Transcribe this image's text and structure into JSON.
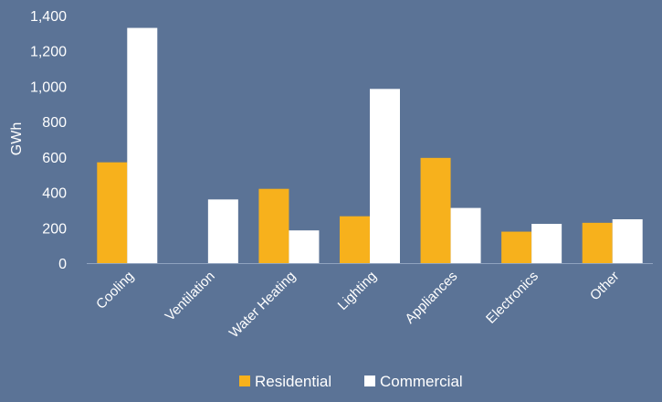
{
  "colors": {
    "background": "#5b7396",
    "residential": "#f7b11c",
    "commercial": "#ffffff",
    "axis": "#8fa3bf",
    "text": "#ffffff"
  },
  "chart_data": {
    "type": "bar",
    "title": "",
    "xlabel": "",
    "ylabel": "GWh",
    "ylim": [
      0,
      1400
    ],
    "yticks": [
      0,
      200,
      400,
      600,
      800,
      1000,
      1200,
      1400
    ],
    "ytick_labels": [
      "0",
      "200",
      "400",
      "600",
      "800",
      "1,000",
      "1,200",
      "1,400"
    ],
    "categories": [
      "Cooling",
      "Ventilation",
      "Water Heating",
      "Lighting",
      "Appliances",
      "Electronics",
      "Other"
    ],
    "series": [
      {
        "name": "Residential",
        "color": "#f7b11c",
        "values": [
          570,
          0,
          420,
          265,
          595,
          178,
          228
        ]
      },
      {
        "name": "Commercial",
        "color": "#ffffff",
        "values": [
          1330,
          360,
          185,
          985,
          312,
          222,
          248
        ]
      }
    ],
    "grid": false,
    "legend_position": "bottom"
  }
}
